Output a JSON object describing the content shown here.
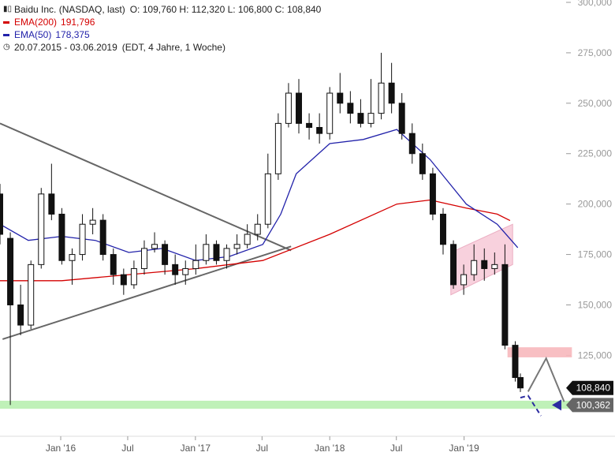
{
  "legend": {
    "instrument": "Baidu Inc. (NASDAQ, last)",
    "ohlc": "O: 109,760  H: 112,320  L: 106,800  C: 108,840",
    "ema200_label": "EMA(200)",
    "ema200_value": "191,796",
    "ema50_label": "EMA(50)",
    "ema50_value": "178,375",
    "period": "20.07.2015 - 03.06.2019",
    "period_info": "(EDT, 4 Jahre, 1 Woche)"
  },
  "colors": {
    "candle": "#111111",
    "ema200": "#d40000",
    "ema50": "#2222aa",
    "trendline": "#666666",
    "channel_fill": "#f7c9d8",
    "resistance_zone": "#f7b8bc",
    "support_zone": "#b8f0b0",
    "projection": "#2b2ba0"
  },
  "price_tags": {
    "last": "108,840",
    "support": "100,362"
  },
  "chart_data": {
    "type": "candlestick",
    "xlim": [
      "2015-07-20",
      "2019-06-03"
    ],
    "ylim": [
      88000,
      300000
    ],
    "y_ticks": [
      "300,000",
      "275,000",
      "250,000",
      "225,000",
      "200,000",
      "175,000",
      "150,000",
      "125,000"
    ],
    "y_tick_values": [
      300000,
      275000,
      250000,
      225000,
      200000,
      175000,
      150000,
      125000
    ],
    "x_ticks": [
      "Jan '16",
      "Jul",
      "Jan '17",
      "Jul",
      "Jan '18",
      "Jul",
      "Jan '19"
    ],
    "x_tick_dates": [
      "2016-01-01",
      "2016-07-01",
      "2017-01-01",
      "2017-07-01",
      "2018-01-01",
      "2018-07-01",
      "2019-01-01"
    ],
    "series": [
      {
        "name": "Baidu Inc. (NASDAQ, last)",
        "type": "candlestick",
        "x": [
          "2015-07-20",
          "2015-08-17",
          "2015-09-14",
          "2015-10-12",
          "2015-11-09",
          "2015-12-07",
          "2016-01-04",
          "2016-02-01",
          "2016-02-29",
          "2016-03-28",
          "2016-04-25",
          "2016-05-23",
          "2016-06-20",
          "2016-07-18",
          "2016-08-15",
          "2016-09-12",
          "2016-10-10",
          "2016-11-07",
          "2016-12-05",
          "2017-01-02",
          "2017-01-30",
          "2017-02-27",
          "2017-03-27",
          "2017-04-24",
          "2017-05-22",
          "2017-06-19",
          "2017-07-17",
          "2017-08-14",
          "2017-09-11",
          "2017-10-09",
          "2017-11-06",
          "2017-12-04",
          "2018-01-01",
          "2018-01-29",
          "2018-02-26",
          "2018-03-26",
          "2018-04-23",
          "2018-05-21",
          "2018-06-18",
          "2018-07-16",
          "2018-08-13",
          "2018-09-10",
          "2018-10-08",
          "2018-11-05",
          "2018-12-03",
          "2018-12-31",
          "2019-01-28",
          "2019-02-25",
          "2019-03-25",
          "2019-04-22",
          "2019-05-20",
          "2019-06-03"
        ],
        "open": [
          205000,
          183000,
          150000,
          140000,
          170000,
          205000,
          195000,
          172000,
          175000,
          190000,
          192000,
          175000,
          165000,
          160000,
          168000,
          178000,
          180000,
          170000,
          165000,
          168000,
          172000,
          180000,
          172000,
          178000,
          180000,
          185000,
          190000,
          215000,
          240000,
          255000,
          240000,
          238000,
          235000,
          255000,
          250000,
          245000,
          240000,
          245000,
          260000,
          250000,
          235000,
          225000,
          215000,
          195000,
          180000,
          160000,
          165000,
          172000,
          168000,
          170000,
          130000,
          114000
        ],
        "high": [
          210000,
          186000,
          160000,
          172000,
          208000,
          220000,
          198000,
          178000,
          195000,
          198000,
          195000,
          178000,
          168000,
          172000,
          182000,
          186000,
          182000,
          175000,
          172000,
          180000,
          185000,
          182000,
          180000,
          185000,
          190000,
          195000,
          225000,
          245000,
          260000,
          262000,
          245000,
          245000,
          258000,
          265000,
          256000,
          252000,
          262000,
          275000,
          270000,
          255000,
          240000,
          230000,
          218000,
          198000,
          182000,
          170000,
          180000,
          178000,
          176000,
          180000,
          132000,
          116000
        ],
        "low": [
          180000,
          100362,
          135000,
          138000,
          168000,
          192000,
          170000,
          160000,
          172000,
          185000,
          172000,
          160000,
          155000,
          158000,
          165000,
          176000,
          165000,
          160000,
          160000,
          165000,
          170000,
          170000,
          168000,
          175000,
          178000,
          182000,
          188000,
          212000,
          238000,
          235000,
          232000,
          230000,
          232000,
          245000,
          240000,
          238000,
          238000,
          242000,
          245000,
          232000,
          220000,
          212000,
          192000,
          175000,
          158000,
          155000,
          162000,
          162000,
          165000,
          128000,
          112000,
          106800
        ],
        "close": [
          185000,
          150000,
          140000,
          170000,
          205000,
          195000,
          172000,
          175000,
          190000,
          192000,
          175000,
          165000,
          160000,
          168000,
          178000,
          180000,
          170000,
          165000,
          168000,
          172000,
          180000,
          172000,
          178000,
          180000,
          185000,
          190000,
          215000,
          240000,
          255000,
          240000,
          238000,
          235000,
          255000,
          250000,
          245000,
          240000,
          245000,
          260000,
          250000,
          235000,
          225000,
          215000,
          195000,
          180000,
          160000,
          165000,
          172000,
          168000,
          170000,
          130000,
          114000,
          108840
        ]
      },
      {
        "name": "EMA(200)",
        "type": "line",
        "x": [
          "2015-07-20",
          "2016-01-04",
          "2016-07-04",
          "2017-01-02",
          "2017-07-03",
          "2018-01-01",
          "2018-07-02",
          "2018-10-01",
          "2019-01-07",
          "2019-04-01",
          "2019-05-06"
        ],
        "values": [
          162000,
          162000,
          165000,
          168000,
          172000,
          185000,
          200000,
          202000,
          198000,
          195000,
          191796
        ]
      },
      {
        "name": "EMA(50)",
        "type": "line",
        "x": [
          "2015-07-20",
          "2015-10-05",
          "2016-01-04",
          "2016-04-04",
          "2016-07-04",
          "2016-10-03",
          "2017-01-02",
          "2017-04-03",
          "2017-07-03",
          "2017-08-21",
          "2017-10-02",
          "2018-01-01",
          "2018-04-02",
          "2018-07-02",
          "2018-10-01",
          "2019-01-07",
          "2019-04-01",
          "2019-05-27"
        ],
        "values": [
          190000,
          182000,
          184000,
          182000,
          176000,
          178000,
          172000,
          174000,
          180000,
          195000,
          215000,
          230000,
          232000,
          237000,
          222000,
          200000,
          190000,
          178375
        ]
      }
    ],
    "annotations": [
      {
        "type": "trendline",
        "name": "triangle-upper-line",
        "x": [
          "2015-07-20",
          "2017-09-18"
        ],
        "y": [
          240000,
          177000
        ]
      },
      {
        "type": "trendline",
        "name": "triangle-lower-line",
        "x": [
          "2015-07-27",
          "2017-09-18"
        ],
        "y": [
          133000,
          179000
        ]
      },
      {
        "type": "channel",
        "name": "bearish-flag",
        "x": [
          "2018-11-26",
          "2019-05-13",
          "2019-05-13",
          "2018-11-26"
        ],
        "y": [
          176000,
          190000,
          170000,
          155000
        ]
      },
      {
        "type": "zone",
        "name": "resistance-zone",
        "x": [
          "2019-04-29",
          "2019-10-21"
        ],
        "y": [
          129000,
          124000
        ]
      },
      {
        "type": "zone",
        "name": "support-zone",
        "x": [
          "2015-07-20",
          "2019-10-21"
        ],
        "y": [
          102500,
          98500
        ]
      },
      {
        "type": "projection",
        "name": "grey-projection",
        "x": [
          "2019-06-24",
          "2019-08-12",
          "2019-09-30"
        ],
        "y": [
          107000,
          123500,
          102000
        ]
      },
      {
        "type": "projection",
        "name": "blue-projection",
        "x": [
          "2019-06-03",
          "2019-06-24",
          "2019-07-29"
        ],
        "y": [
          104000,
          105000,
          95000
        ]
      }
    ]
  }
}
